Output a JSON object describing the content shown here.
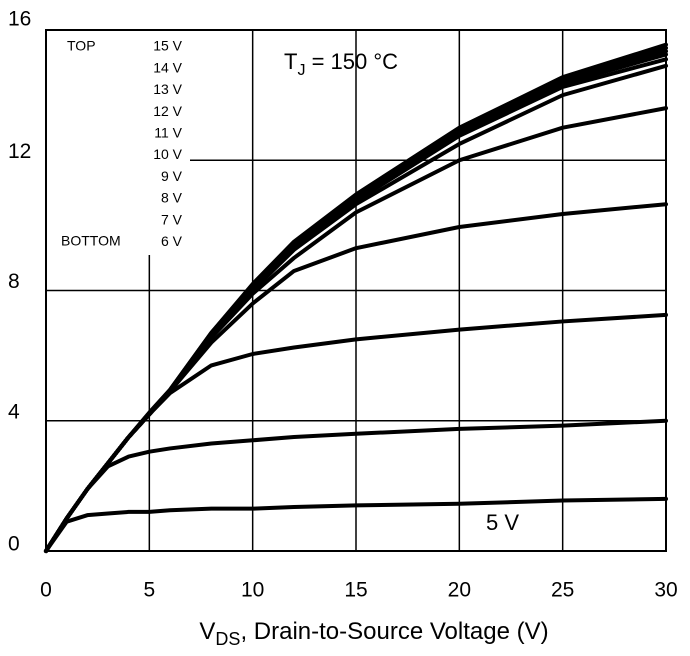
{
  "chart_data": {
    "type": "line",
    "annotation": {
      "text": "T",
      "sub": "J",
      "rest": " = 150 °C"
    },
    "x_label": {
      "text": "V",
      "sub": "DS",
      "rest": ", Drain-to-Source Voltage (V)"
    },
    "legend_top": "TOP",
    "legend_bottom": "BOTTOM",
    "x": [
      0,
      1,
      2,
      3,
      4,
      5,
      6,
      8,
      10,
      12,
      15,
      20,
      25,
      30
    ],
    "series": [
      {
        "name": "15 V",
        "color": "#000000",
        "values": [
          0,
          1.0,
          1.9,
          2.7,
          3.5,
          4.25,
          4.95,
          6.7,
          8.2,
          9.5,
          10.95,
          13.0,
          14.55,
          15.55
        ]
      },
      {
        "name": "14 V",
        "color": "#000000",
        "values": [
          0,
          1.0,
          1.9,
          2.7,
          3.5,
          4.25,
          4.95,
          6.7,
          8.15,
          9.45,
          10.9,
          12.95,
          14.5,
          15.45
        ]
      },
      {
        "name": "13 V",
        "color": "#000000",
        "values": [
          0,
          1.0,
          1.9,
          2.7,
          3.5,
          4.2,
          4.9,
          6.65,
          8.1,
          9.4,
          10.85,
          12.9,
          14.45,
          15.35
        ]
      },
      {
        "name": "12 V",
        "color": "#000000",
        "values": [
          0,
          1.0,
          1.9,
          2.7,
          3.5,
          4.2,
          4.9,
          6.65,
          8.1,
          9.4,
          10.8,
          12.85,
          14.35,
          15.25
        ]
      },
      {
        "name": "11 V",
        "color": "#000000",
        "values": [
          0,
          1.0,
          1.9,
          2.7,
          3.5,
          4.2,
          4.9,
          6.6,
          8.05,
          9.35,
          10.75,
          12.75,
          14.25,
          15.1
        ]
      },
      {
        "name": "10 V",
        "color": "#000000",
        "values": [
          0,
          1.0,
          1.9,
          2.7,
          3.5,
          4.2,
          4.9,
          6.6,
          8.0,
          9.25,
          10.65,
          12.5,
          14.0,
          14.9
        ]
      },
      {
        "name": "9 V",
        "color": "#000000",
        "values": [
          0,
          1.0,
          1.9,
          2.7,
          3.5,
          4.2,
          4.9,
          6.55,
          7.9,
          9.0,
          10.4,
          12.0,
          13.0,
          13.6
        ]
      },
      {
        "name": "8 V",
        "color": "#000000",
        "values": [
          0,
          1.0,
          1.9,
          2.7,
          3.5,
          4.2,
          4.9,
          6.4,
          7.6,
          8.6,
          9.3,
          9.95,
          10.35,
          10.65
        ]
      },
      {
        "name": "7 V",
        "color": "#000000",
        "values": [
          0,
          1.0,
          1.9,
          2.7,
          3.5,
          4.2,
          4.85,
          5.7,
          6.05,
          6.25,
          6.5,
          6.8,
          7.05,
          7.25
        ]
      },
      {
        "name": "6 V",
        "color": "#000000",
        "values": [
          0,
          1.0,
          1.9,
          2.6,
          2.9,
          3.05,
          3.15,
          3.3,
          3.4,
          3.5,
          3.6,
          3.75,
          3.85,
          4.0
        ]
      },
      {
        "name": "5 V",
        "color": "#000000",
        "values": [
          0,
          0.9,
          1.1,
          1.15,
          1.2,
          1.2,
          1.25,
          1.3,
          1.3,
          1.35,
          1.4,
          1.45,
          1.55,
          1.6
        ]
      }
    ],
    "xlim": [
      0,
      30
    ],
    "xticks": [
      0,
      5,
      10,
      15,
      20,
      25,
      30
    ],
    "ylim": [
      0,
      16
    ],
    "yticks": [
      0,
      4,
      8,
      12,
      16
    ],
    "grid": true
  }
}
